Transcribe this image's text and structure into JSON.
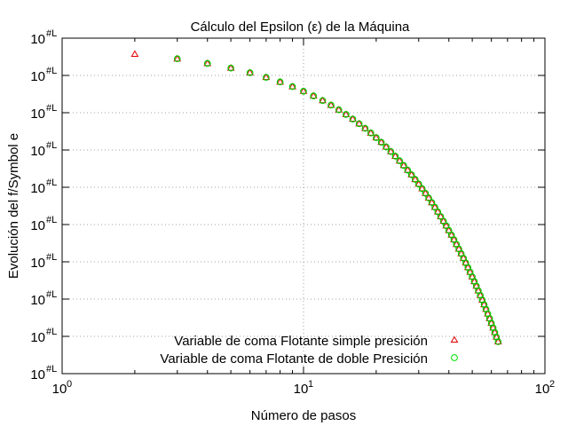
{
  "chart_data": {
    "type": "scatter",
    "title": "Cálculo del Epsilon (ε) de la Máquina",
    "xlabel": "Número de pasos",
    "ylabel": "Evolución del f/Symbol e",
    "xscale": "log",
    "yscale": "log",
    "xlim": [
      1,
      100
    ],
    "x_tick_labels": [
      {
        "value": 1,
        "label": "10",
        "exp": "0"
      },
      {
        "value": 10,
        "label": "10",
        "exp": "1"
      },
      {
        "value": 100,
        "label": "10",
        "exp": "2"
      }
    ],
    "y_tick_labels": [
      "10",
      "10",
      "10",
      "10",
      "10",
      "10",
      "10",
      "10",
      "10",
      "10"
    ],
    "y_tick_exp": "#L",
    "grid": true,
    "legend_position": "bottom-right",
    "series": [
      {
        "name": "Variable de coma Flotante simple presición",
        "marker": "triangle",
        "color": "#e00000",
        "x": [
          2,
          3,
          4,
          5,
          6,
          7,
          8,
          9,
          10,
          11,
          12,
          13,
          14,
          15,
          16,
          17,
          18,
          19,
          20,
          21,
          22,
          23,
          24,
          25,
          26,
          27,
          28,
          29,
          30,
          31,
          32,
          33,
          34,
          35,
          36,
          37,
          38,
          39,
          40,
          41,
          42,
          43,
          44,
          45,
          46,
          47,
          48,
          49,
          50,
          51,
          52,
          53,
          54,
          55,
          56,
          57,
          58,
          59,
          60,
          61,
          62,
          63,
          64
        ],
        "y": [
          1,
          0.5,
          0.25,
          0.125,
          0.0625,
          0.03125,
          0.015625,
          0.0078125,
          0.00390625,
          0.001953125,
          0.0009765625,
          0.00048828125,
          0.000244140625,
          0.0001220703125,
          6.103515625e-05,
          3.0517578125e-05,
          1.52587890625e-05,
          7.62939453125e-06,
          3.814697265625e-06,
          1.9073486328125e-06,
          9.5367431640625e-07,
          4.76837158203125e-07,
          2.384185791015625e-07,
          1.1920928955078125e-07,
          5.960464477539063e-08,
          2.9802322387695312e-08,
          1.4901161193847656e-08,
          7.450580596923828e-09,
          3.725290298461914e-09,
          1.862645149230957e-09,
          9.313225746154785e-10,
          4.656612873077393e-10,
          2.3283064365386963e-10,
          1.1641532182693481e-10,
          5.820766091346741e-11,
          2.9103830456733704e-11,
          1.4551915228366852e-11,
          7.275957614183426e-12,
          3.637978807091713e-12,
          1.8189894035458565e-12,
          9.094947017729282e-13,
          4.547473508864641e-13,
          2.2737367544323206e-13,
          1.1368683772161603e-13,
          5.684341886080802e-14,
          2.842170943040401e-14,
          1.4210854715202004e-14,
          7.105427357601002e-15,
          3.552713678800501e-15,
          1.7763568394002505e-15,
          8.881784197001252e-16,
          4.440892098500626e-16,
          2.220446049250313e-16,
          1.1102230246251565e-16,
          5.551115123125783e-17,
          2.7755575615628914e-17,
          1.3877787807814457e-17,
          6.938893903907228e-18,
          3.469446951953614e-18,
          1.734723475976807e-18,
          8.673617379884035e-19,
          4.336808689942018e-19,
          2.168404344971009e-19
        ]
      },
      {
        "name": "Variable de coma Flotante de doble Presición",
        "marker": "circle",
        "color": "#00cc00",
        "x": [
          3,
          4,
          5,
          6,
          7,
          8,
          9,
          10,
          11,
          12,
          13,
          14,
          15,
          16,
          17,
          18,
          19,
          20,
          21,
          22,
          23,
          24,
          25,
          26,
          27,
          28,
          29,
          30,
          31,
          32,
          33,
          34,
          35,
          36,
          37,
          38,
          39,
          40,
          41,
          42,
          43,
          44,
          45,
          46,
          47,
          48,
          49,
          50,
          51,
          52,
          53,
          54,
          55,
          56,
          57,
          58,
          59,
          60,
          61,
          62,
          63,
          64
        ],
        "y": [
          0.5,
          0.25,
          0.125,
          0.0625,
          0.03125,
          0.015625,
          0.0078125,
          0.00390625,
          0.001953125,
          0.0009765625,
          0.00048828125,
          0.000244140625,
          0.0001220703125,
          6.103515625e-05,
          3.0517578125e-05,
          1.52587890625e-05,
          7.62939453125e-06,
          3.814697265625e-06,
          1.9073486328125e-06,
          9.5367431640625e-07,
          4.76837158203125e-07,
          2.384185791015625e-07,
          1.1920928955078125e-07,
          5.960464477539063e-08,
          2.9802322387695312e-08,
          1.4901161193847656e-08,
          7.450580596923828e-09,
          3.725290298461914e-09,
          1.862645149230957e-09,
          9.313225746154785e-10,
          4.656612873077393e-10,
          2.3283064365386963e-10,
          1.1641532182693481e-10,
          5.820766091346741e-11,
          2.9103830456733704e-11,
          1.4551915228366852e-11,
          7.275957614183426e-12,
          3.637978807091713e-12,
          1.8189894035458565e-12,
          9.094947017729282e-13,
          4.547473508864641e-13,
          2.2737367544323206e-13,
          1.1368683772161603e-13,
          5.684341886080802e-14,
          2.842170943040401e-14,
          1.4210854715202004e-14,
          7.105427357601002e-15,
          3.552713678800501e-15,
          1.7763568394002505e-15,
          8.881784197001252e-16,
          4.440892098500626e-16,
          2.220446049250313e-16,
          1.1102230246251565e-16,
          5.551115123125783e-17,
          2.7755575615628914e-17,
          1.3877787807814457e-17,
          6.938893903907228e-18,
          3.469446951953614e-18,
          1.734723475976807e-18,
          8.673617379884035e-19,
          4.336808689942018e-19,
          2.168404344971009e-19
        ]
      }
    ]
  }
}
